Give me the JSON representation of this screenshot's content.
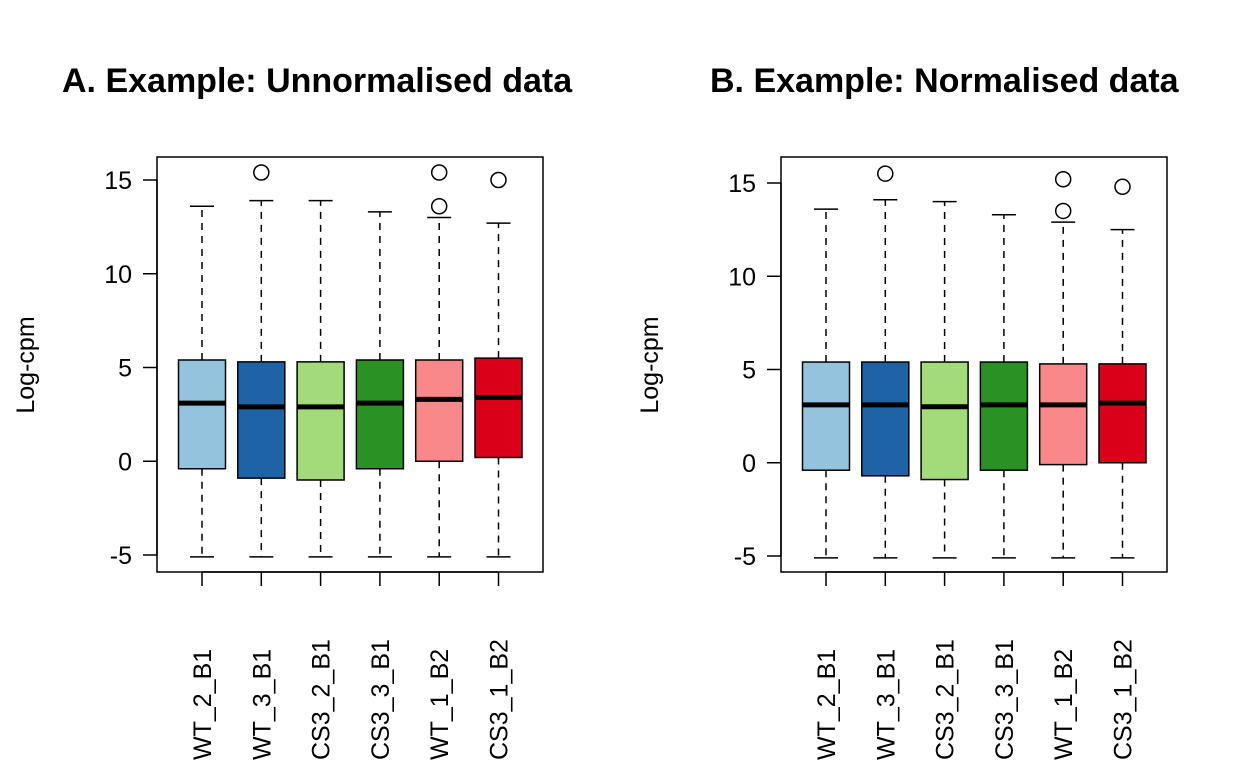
{
  "chart_data": [
    {
      "type": "boxplot",
      "title": "A. Example: Unnormalised data",
      "ylabel": "Log-cpm",
      "xlabel": "",
      "ylim": [
        -6.0,
        16.0
      ],
      "yticks": [
        -5,
        0,
        5,
        10,
        15
      ],
      "ytick_labels": [
        "-5",
        "0",
        "5",
        "10",
        "15"
      ],
      "categories": [
        "WT_2_B1",
        "WT_3_B1",
        "CS3_2_B1",
        "CS3_3_B1",
        "WT_1_B2",
        "CS3_1_B2"
      ],
      "colors": [
        "#94c3de",
        "#1f63a7",
        "#a3db7a",
        "#2a9224",
        "#f8888a",
        "#da0019"
      ],
      "boxes": [
        {
          "whislo": -5.1,
          "q1": -0.4,
          "med": 3.1,
          "q3": 5.4,
          "whishi": 13.6,
          "fliers": []
        },
        {
          "whislo": -5.1,
          "q1": -0.9,
          "med": 2.9,
          "q3": 5.3,
          "whishi": 13.9,
          "fliers": [
            15.4
          ]
        },
        {
          "whislo": -5.1,
          "q1": -1.0,
          "med": 2.9,
          "q3": 5.3,
          "whishi": 13.9,
          "fliers": []
        },
        {
          "whislo": -5.1,
          "q1": -0.4,
          "med": 3.1,
          "q3": 5.4,
          "whishi": 13.3,
          "fliers": []
        },
        {
          "whislo": -5.1,
          "q1": 0.0,
          "med": 3.3,
          "q3": 5.4,
          "whishi": 13.0,
          "fliers": [
            13.6,
            15.4
          ]
        },
        {
          "whislo": -5.1,
          "q1": 0.2,
          "med": 3.4,
          "q3": 5.5,
          "whishi": 12.7,
          "fliers": [
            15.0
          ]
        }
      ]
    },
    {
      "type": "boxplot",
      "title": "B. Example: Normalised data",
      "ylabel": "Log-cpm",
      "xlabel": "",
      "ylim": [
        -6.0,
        16.0
      ],
      "yticks": [
        -5,
        0,
        5,
        10,
        15
      ],
      "ytick_labels": [
        "-5",
        "0",
        "5",
        "10",
        "15"
      ],
      "categories": [
        "WT_2_B1",
        "WT_3_B1",
        "CS3_2_B1",
        "CS3_3_B1",
        "WT_1_B2",
        "CS3_1_B2"
      ],
      "colors": [
        "#94c3de",
        "#1f63a7",
        "#a3db7a",
        "#2a9224",
        "#f8888a",
        "#da0019"
      ],
      "boxes": [
        {
          "whislo": -5.1,
          "q1": -0.4,
          "med": 3.1,
          "q3": 5.4,
          "whishi": 13.6,
          "fliers": []
        },
        {
          "whislo": -5.1,
          "q1": -0.7,
          "med": 3.1,
          "q3": 5.4,
          "whishi": 14.1,
          "fliers": [
            15.5
          ]
        },
        {
          "whislo": -5.1,
          "q1": -0.9,
          "med": 3.0,
          "q3": 5.4,
          "whishi": 14.0,
          "fliers": []
        },
        {
          "whislo": -5.1,
          "q1": -0.4,
          "med": 3.1,
          "q3": 5.4,
          "whishi": 13.3,
          "fliers": []
        },
        {
          "whislo": -5.1,
          "q1": -0.1,
          "med": 3.1,
          "q3": 5.3,
          "whishi": 12.9,
          "fliers": [
            13.5,
            15.2
          ]
        },
        {
          "whislo": -5.1,
          "q1": 0.0,
          "med": 3.2,
          "q3": 5.3,
          "whishi": 12.5,
          "fliers": [
            14.8
          ]
        }
      ]
    }
  ]
}
